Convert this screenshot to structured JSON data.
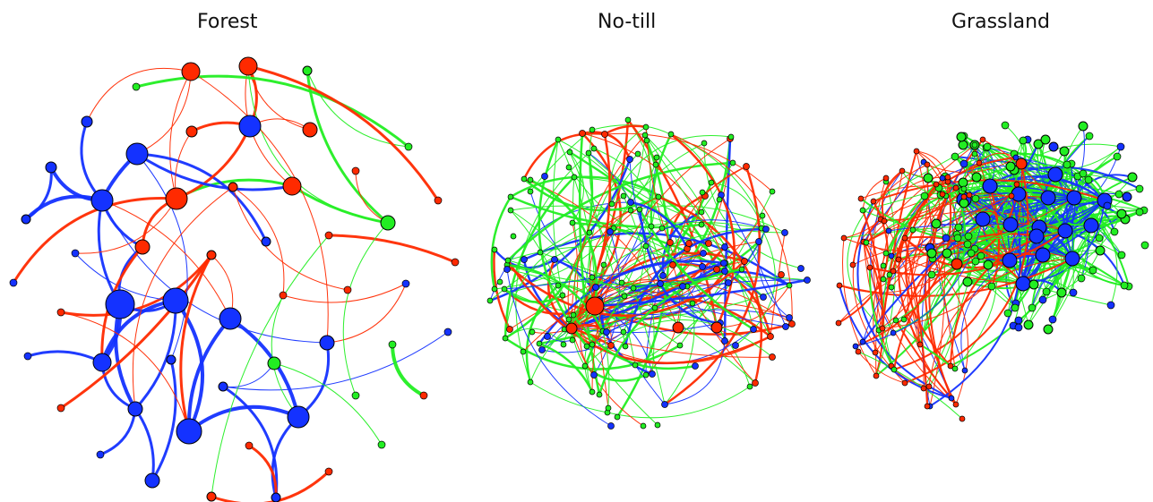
{
  "colors": {
    "red": "#ff2a00",
    "blue": "#1432ff",
    "green": "#22ee22",
    "outline": "#000000"
  },
  "panels": [
    {
      "title": "Forest"
    },
    {
      "title": "No-till"
    },
    {
      "title": "Grassland"
    }
  ]
}
